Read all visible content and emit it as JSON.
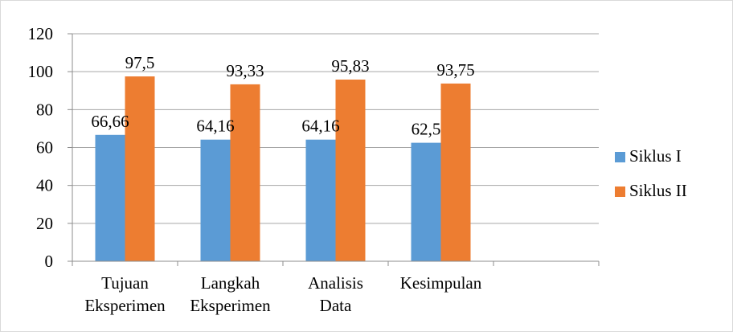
{
  "chart_data": {
    "type": "bar",
    "title": "",
    "xlabel": "",
    "ylabel": "",
    "categories": [
      [
        "Tujuan",
        "Eksperimen"
      ],
      [
        "Langkah",
        "Eksperimen"
      ],
      [
        "Analisis",
        "Data"
      ],
      [
        "Kesimpulan"
      ],
      []
    ],
    "series": [
      {
        "name": "Siklus I",
        "color": "#5B9BD5",
        "values": [
          66.66,
          64.16,
          64.16,
          62.5,
          null
        ],
        "labels": [
          "66,66",
          "64,16",
          "64,16",
          "62,5",
          ""
        ]
      },
      {
        "name": "Siklus II",
        "color": "#ED7D31",
        "values": [
          97.5,
          93.33,
          95.83,
          93.75,
          null
        ],
        "labels": [
          "97,5",
          "93,33",
          "95,83",
          "93,75",
          ""
        ]
      }
    ],
    "ylim": [
      0,
      120
    ],
    "yticks": [
      0,
      20,
      40,
      60,
      80,
      100,
      120
    ],
    "grid": true,
    "gridColor": "#a6a6a6",
    "legend": "right"
  }
}
